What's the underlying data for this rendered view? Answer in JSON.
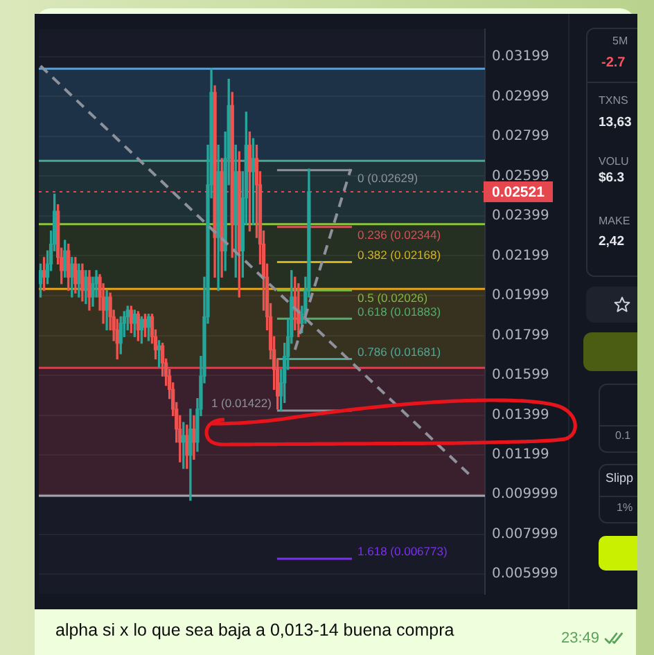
{
  "chart_data": {
    "type": "candlestick",
    "categories": [
      null,
      null,
      null,
      null,
      null,
      null,
      null,
      null,
      null,
      null,
      null,
      null,
      null,
      null,
      null,
      null,
      null,
      null,
      null,
      null,
      null,
      null,
      null,
      null,
      null,
      null,
      null,
      null,
      null,
      null,
      null,
      null,
      null,
      null,
      null,
      null,
      null,
      null,
      null,
      null,
      null,
      null,
      null,
      null,
      null,
      null,
      null,
      null,
      null,
      null,
      null,
      null,
      null,
      null,
      null,
      null,
      null,
      null,
      null,
      null,
      null,
      null,
      null,
      null,
      null,
      null,
      null,
      null,
      null,
      null,
      null,
      null,
      null,
      null,
      null,
      null,
      null,
      null,
      null,
      null,
      null,
      null,
      null,
      null,
      null,
      null,
      null,
      null,
      null,
      null,
      null,
      null,
      null,
      null,
      null,
      null,
      null,
      null,
      null,
      null,
      null,
      null,
      null,
      null,
      null,
      null,
      null,
      null,
      null,
      null,
      null,
      null,
      null,
      null,
      null,
      null,
      null,
      null,
      null,
      null,
      null,
      null,
      null,
      null,
      null,
      null,
      null,
      null
    ],
    "ohlc": [
      [
        0.02059,
        0.02158,
        0.01992,
        0.02125
      ],
      [
        0.02125,
        0.02191,
        0.02025,
        0.02092
      ],
      [
        0.02092,
        0.02224,
        0.02059,
        0.02158
      ],
      [
        0.02158,
        0.02324,
        0.02125,
        0.02258
      ],
      [
        0.02258,
        0.02509,
        0.02224,
        0.02423
      ],
      [
        0.02423,
        0.02456,
        0.02158,
        0.02191
      ],
      [
        0.02191,
        0.02238,
        0.02059,
        0.02125
      ],
      [
        0.02125,
        0.02277,
        0.02092,
        0.02224
      ],
      [
        0.02224,
        0.02258,
        0.02025,
        0.02092
      ],
      [
        0.02092,
        0.02191,
        0.01992,
        0.02158
      ],
      [
        0.02158,
        0.02191,
        0.02012,
        0.02059
      ],
      [
        0.02059,
        0.02158,
        0.01992,
        0.02125
      ],
      [
        0.02125,
        0.02158,
        0.01972,
        0.02025
      ],
      [
        0.02025,
        0.02125,
        0.01959,
        0.02092
      ],
      [
        0.02092,
        0.02125,
        0.01926,
        0.01992
      ],
      [
        0.01992,
        0.02092,
        0.01946,
        0.02059
      ],
      [
        0.02059,
        0.02125,
        0.01992,
        0.02092
      ],
      [
        0.02092,
        0.02105,
        0.01926,
        0.01992
      ],
      [
        0.01992,
        0.02059,
        0.0186,
        0.01926
      ],
      [
        0.01926,
        0.02025,
        0.01827,
        0.01992
      ],
      [
        0.01992,
        0.02012,
        0.01827,
        0.01893
      ],
      [
        0.01893,
        0.01926,
        0.01773,
        0.01827
      ],
      [
        0.01827,
        0.0188,
        0.01681,
        0.0176
      ],
      [
        0.0176,
        0.01893,
        0.01707,
        0.0186
      ],
      [
        0.0186,
        0.01919,
        0.01793,
        0.01893
      ],
      [
        0.01893,
        0.01946,
        0.01827,
        0.01926
      ],
      [
        0.01926,
        0.01946,
        0.01813,
        0.0186
      ],
      [
        0.0186,
        0.01926,
        0.01793,
        0.01906
      ],
      [
        0.01906,
        0.01919,
        0.01773,
        0.01827
      ],
      [
        0.01827,
        0.01893,
        0.0176,
        0.0188
      ],
      [
        0.0188,
        0.01906,
        0.01793,
        0.0184
      ],
      [
        0.0184,
        0.01906,
        0.01773,
        0.01893
      ],
      [
        0.01893,
        0.01906,
        0.0176,
        0.01793
      ],
      [
        0.01793,
        0.01827,
        0.01681,
        0.01727
      ],
      [
        0.01727,
        0.01773,
        0.01641,
        0.01747
      ],
      [
        0.01747,
        0.0176,
        0.01595,
        0.01661
      ],
      [
        0.01661,
        0.01681,
        0.01548,
        0.01595
      ],
      [
        0.01595,
        0.01628,
        0.01482,
        0.01528
      ],
      [
        0.01528,
        0.01561,
        0.01396,
        0.01429
      ],
      [
        0.01429,
        0.01462,
        0.01263,
        0.01329
      ],
      [
        0.01329,
        0.01396,
        0.01164,
        0.01263
      ],
      [
        0.01263,
        0.01362,
        0.01131,
        0.01296
      ],
      [
        0.01296,
        0.01349,
        0.01131,
        0.01197
      ],
      [
        0.01197,
        0.01429,
        0.00971,
        0.01329
      ],
      [
        0.01329,
        0.01396,
        0.01177,
        0.01263
      ],
      [
        0.01263,
        0.01482,
        0.01217,
        0.01429
      ],
      [
        0.01429,
        0.01694,
        0.01396,
        0.01595
      ],
      [
        0.01595,
        0.02092,
        0.01561,
        0.01893
      ],
      [
        0.01893,
        0.02755,
        0.0186,
        0.02556
      ],
      [
        0.02556,
        0.03139,
        0.0249,
        0.0302
      ],
      [
        0.0302,
        0.03053,
        0.02092,
        0.02291
      ],
      [
        0.02291,
        0.02755,
        0.02025,
        0.02622
      ],
      [
        0.02622,
        0.02688,
        0.02092,
        0.02224
      ],
      [
        0.02224,
        0.02821,
        0.02125,
        0.02688
      ],
      [
        0.02688,
        0.03086,
        0.02556,
        0.02954
      ],
      [
        0.02954,
        0.0302,
        0.02191,
        0.02357
      ],
      [
        0.02357,
        0.02755,
        0.02092,
        0.02622
      ],
      [
        0.02622,
        0.02722,
        0.01992,
        0.02224
      ],
      [
        0.02224,
        0.02622,
        0.02092,
        0.0249
      ],
      [
        0.0249,
        0.02921,
        0.02357,
        0.02755
      ],
      [
        0.02755,
        0.02821,
        0.02324,
        0.02622
      ],
      [
        0.02622,
        0.02788,
        0.02357,
        0.02688
      ],
      [
        0.02688,
        0.02755,
        0.02291,
        0.02556
      ],
      [
        0.02556,
        0.02622,
        0.02158,
        0.02258
      ],
      [
        0.02258,
        0.02324,
        0.01926,
        0.02092
      ],
      [
        0.02092,
        0.02158,
        0.01827,
        0.01893
      ],
      [
        0.01893,
        0.01959,
        0.01681,
        0.01727
      ],
      [
        0.01727,
        0.01793,
        0.01528,
        0.01628
      ],
      [
        0.01628,
        0.01681,
        0.01429,
        0.01495
      ],
      [
        0.01495,
        0.01628,
        0.01422,
        0.01561
      ],
      [
        0.01561,
        0.0176,
        0.01462,
        0.01694
      ],
      [
        0.01694,
        0.0188,
        0.01628,
        0.01793
      ],
      [
        0.01793,
        0.02125,
        0.0176,
        0.01992
      ],
      [
        0.01992,
        0.02092,
        0.01827,
        0.01926
      ],
      [
        0.01926,
        0.02059,
        0.01793,
        0.0186
      ],
      [
        0.0186,
        0.01946,
        0.01813,
        0.01906
      ],
      [
        0.01906,
        0.02092,
        0.0186,
        0.02025
      ],
      [
        0.02025,
        0.02635,
        0.01992,
        0.02521
      ],
      null,
      null,
      null,
      null,
      null,
      null,
      null,
      null,
      null,
      null,
      null,
      null,
      null,
      null,
      null,
      null,
      null,
      null,
      null,
      null,
      null,
      null,
      null,
      null,
      null,
      null,
      null,
      null,
      null,
      null,
      null,
      null,
      null,
      null,
      null,
      null,
      null,
      null,
      null,
      null,
      null,
      null,
      null,
      null,
      null,
      null,
      null,
      null,
      null,
      null
    ],
    "colors": [
      "#26a69a",
      "#ef5350",
      "#26a69a",
      "#26a69a",
      "#26a69a",
      "#ef5350",
      "#ef5350",
      "#26a69a",
      "#ef5350",
      "#26a69a",
      "#ef5350",
      "#26a69a",
      "#ef5350",
      "#26a69a",
      "#ef5350",
      "#26a69a",
      "#26a69a",
      "#ef5350",
      "#ef5350",
      "#26a69a",
      "#ef5350",
      "#ef5350",
      "#ef5350",
      "#26a69a",
      "#26a69a",
      "#26a69a",
      "#ef5350",
      "#26a69a",
      "#ef5350",
      "#26a69a",
      "#ef5350",
      "#26a69a",
      "#ef5350",
      "#ef5350",
      "#26a69a",
      "#ef5350",
      "#ef5350",
      "#ef5350",
      "#ef5350",
      "#ef5350",
      "#ef5350",
      "#26a69a",
      "#ef5350",
      "#26a69a",
      "#ef5350",
      "#26a69a",
      "#26a69a",
      "#26a69a",
      "#26a69a",
      "#26a69a",
      "#ef5350",
      "#26a69a",
      "#ef5350",
      "#26a69a",
      "#26a69a",
      "#ef5350",
      "#26a69a",
      "#ef5350",
      "#26a69a",
      "#26a69a",
      "#ef5350",
      "#26a69a",
      "#ef5350",
      "#ef5350",
      "#ef5350",
      "#ef5350",
      "#ef5350",
      "#ef5350",
      "#ef5350",
      "#26a69a",
      "#26a69a",
      "#26a69a",
      "#26a69a",
      "#ef5350",
      "#ef5350",
      "#26a69a",
      "#26a69a",
      "#26a69a",
      null,
      null,
      null,
      null,
      null,
      null,
      null,
      null,
      null,
      null,
      null,
      null,
      null,
      null,
      null,
      null,
      null,
      null,
      null,
      null,
      null,
      null,
      null,
      null,
      null,
      null,
      null,
      null,
      null,
      null,
      null,
      null,
      null,
      null,
      null,
      null,
      null,
      null,
      null,
      null,
      null,
      null,
      null,
      null,
      null,
      null,
      null,
      null,
      null,
      null
    ],
    "series": [
      {
        "type": "line",
        "color": "#8d919b",
        "line_style": "dashed",
        "values": [
          0.03153,
          null,
          null,
          null,
          null,
          null,
          null,
          null,
          null,
          null,
          null,
          null,
          null,
          null,
          null,
          null,
          null,
          null,
          null,
          null,
          null,
          null,
          null,
          null,
          null,
          null,
          null,
          null,
          null,
          null,
          null,
          null,
          null,
          null,
          null,
          null,
          null,
          null,
          null,
          null,
          null,
          null,
          null,
          null,
          null,
          null,
          null,
          null,
          null,
          null,
          null,
          null,
          null,
          null,
          null,
          null,
          null,
          null,
          null,
          null,
          null,
          null,
          null,
          null,
          null,
          null,
          null,
          null,
          null,
          null,
          null,
          null,
          null,
          null,
          null,
          null,
          null,
          null,
          null,
          null,
          null,
          null,
          null,
          null,
          null,
          null,
          null,
          null,
          null,
          null,
          null,
          null,
          null,
          null,
          null,
          null,
          null,
          null,
          null,
          null,
          null,
          null,
          null,
          null,
          null,
          null,
          null,
          null,
          null,
          null,
          null,
          null,
          null,
          null,
          null,
          null,
          null,
          null,
          null,
          null,
          null,
          null,
          null,
          null,
          0.01084,
          null,
          null,
          null
        ]
      },
      {
        "type": "line",
        "color": "#8d919b",
        "line_style": "dashed",
        "values": [
          null,
          null,
          null,
          null,
          null,
          null,
          null,
          null,
          null,
          null,
          null,
          null,
          null,
          null,
          null,
          null,
          null,
          null,
          null,
          null,
          null,
          null,
          null,
          null,
          null,
          null,
          null,
          null,
          null,
          null,
          null,
          null,
          null,
          null,
          null,
          null,
          null,
          null,
          null,
          null,
          null,
          null,
          null,
          null,
          null,
          null,
          null,
          null,
          null,
          null,
          null,
          null,
          null,
          null,
          null,
          null,
          null,
          null,
          null,
          null,
          null,
          null,
          null,
          null,
          null,
          null,
          null,
          null,
          null,
          null,
          null,
          null,
          null,
          0.01727,
          null,
          null,
          null,
          null,
          null,
          null,
          null,
          null,
          null,
          null,
          null,
          null,
          null,
          null,
          null,
          0.02635,
          null,
          null,
          null,
          null,
          null,
          null,
          null,
          null,
          null,
          null,
          null,
          null,
          null,
          null,
          null,
          null,
          null,
          null,
          null,
          null,
          null,
          null,
          null,
          null,
          null,
          null,
          null,
          null,
          null,
          null,
          null,
          null,
          null,
          null,
          null,
          null,
          null,
          null
        ]
      }
    ],
    "ylim": [
      0.005,
      0.03338
    ],
    "yticks": [
      0.005999,
      0.007999,
      0.009999,
      0.01199,
      0.01399,
      0.01599,
      0.01799,
      0.01999,
      0.02199,
      0.02399,
      0.02599,
      0.02799,
      0.02999,
      0.03199
    ],
    "grid": "y",
    "tick_labels": "y",
    "marker": "none",
    "bands": [
      {
        "axis": "y",
        "from": 0.02676,
        "to": 0.03139,
        "color": "#1d3246"
      },
      {
        "axis": "y",
        "from": 0.02358,
        "to": 0.02676,
        "color": "#1d3136"
      },
      {
        "axis": "y",
        "from": 0.02033,
        "to": 0.02358,
        "color": "#252f22"
      },
      {
        "axis": "y",
        "from": 0.01636,
        "to": 0.02033,
        "color": "#37311f"
      },
      {
        "axis": "y",
        "from": 0.00994,
        "to": 0.01636,
        "color": "#3a1f2d"
      }
    ],
    "ref_lines": [
      {
        "axis": "y",
        "value": 0.03139,
        "color": "#5a9fd4"
      },
      {
        "axis": "y",
        "value": 0.02676,
        "color": "#4aa88f"
      },
      {
        "axis": "y",
        "value": 0.02358,
        "color": "#8cc63f"
      },
      {
        "axis": "y",
        "value": 0.02033,
        "color": "#e3a21a"
      },
      {
        "axis": "y",
        "value": 0.01636,
        "color": "#d8404f"
      },
      {
        "axis": "y",
        "value": 0.00994,
        "color": "#a4a7b0"
      },
      {
        "axis": "y",
        "value": 0.02521,
        "label": "0.02521",
        "color": "#e5474f",
        "line_style": "dotted"
      },
      {
        "axis": "y",
        "value": 0.02629,
        "label": "0 (0.02629)",
        "color": "#8e929b"
      },
      {
        "axis": "y",
        "value": 0.02344,
        "label": "0.236 (0.02344)",
        "color": "#d8505a"
      },
      {
        "axis": "y",
        "value": 0.02168,
        "label": "0.382 (0.02168)",
        "color": "#d6b21a"
      },
      {
        "axis": "y",
        "value": 0.02026,
        "label": "0.5 (0.02026)",
        "color": "#7dbb3c"
      },
      {
        "axis": "y",
        "value": 0.01883,
        "label": "0.618 (0.01883)",
        "color": "#4fae6c"
      },
      {
        "axis": "y",
        "value": 0.01681,
        "label": "0.786 (0.01681)",
        "color": "#4aa99a"
      },
      {
        "axis": "y",
        "value": 0.01422,
        "label": "1 (0.01422)",
        "color": "#8e929b"
      },
      {
        "axis": "y",
        "value": 0.006773,
        "label": "1.618 (0.006773)",
        "color": "#7b2ff0"
      }
    ],
    "annotations": [
      "alpha si x lo que sea baja a 0,013-14 buena compra",
      "23:49",
      "5M",
      "-2.7",
      "TXNS",
      "13,63",
      "VOLU",
      "$6.3",
      "MAKE",
      "2,42",
      "0.1",
      "Slipp",
      "1%"
    ]
  }
}
